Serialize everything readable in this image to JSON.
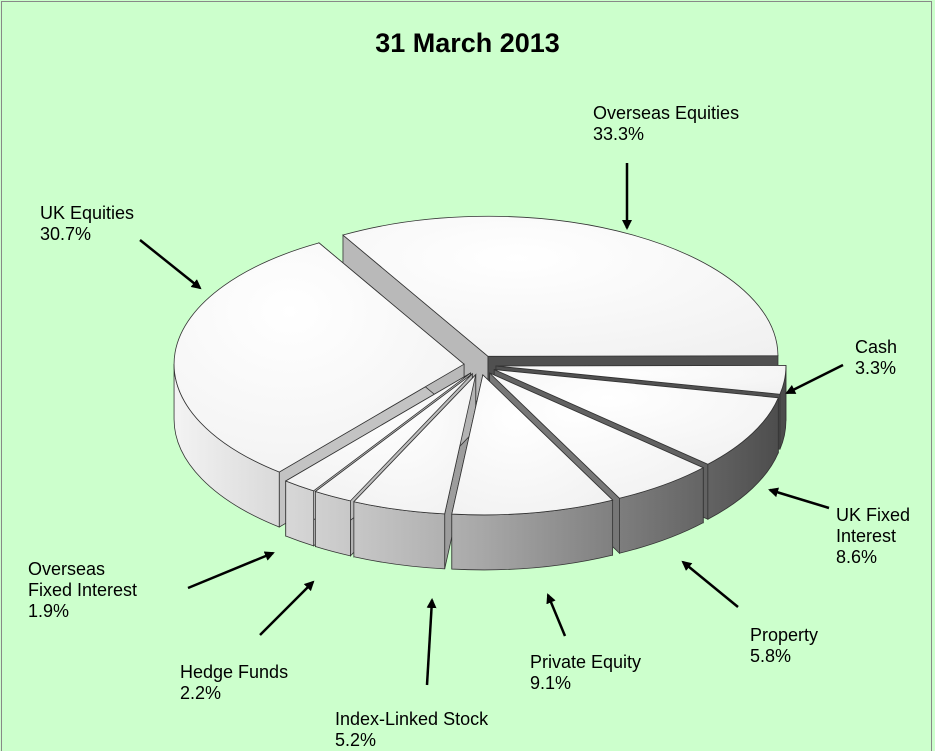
{
  "chart_data": {
    "type": "pie",
    "title": "31 March 2013",
    "categories": [
      "Overseas Equities",
      "Cash",
      "UK Fixed Interest",
      "Property",
      "Private Equity",
      "Index-Linked Stock",
      "Hedge Funds",
      "Overseas Fixed Interest",
      "UK Equities"
    ],
    "values": [
      33.3,
      3.3,
      8.6,
      5.8,
      9.1,
      5.2,
      2.2,
      1.9,
      30.7
    ],
    "value_labels": [
      "33.3%",
      "3.3%",
      "8.6%",
      "5.8%",
      "9.1%",
      "5.2%",
      "2.2%",
      "1.9%",
      "30.7%"
    ]
  }
}
